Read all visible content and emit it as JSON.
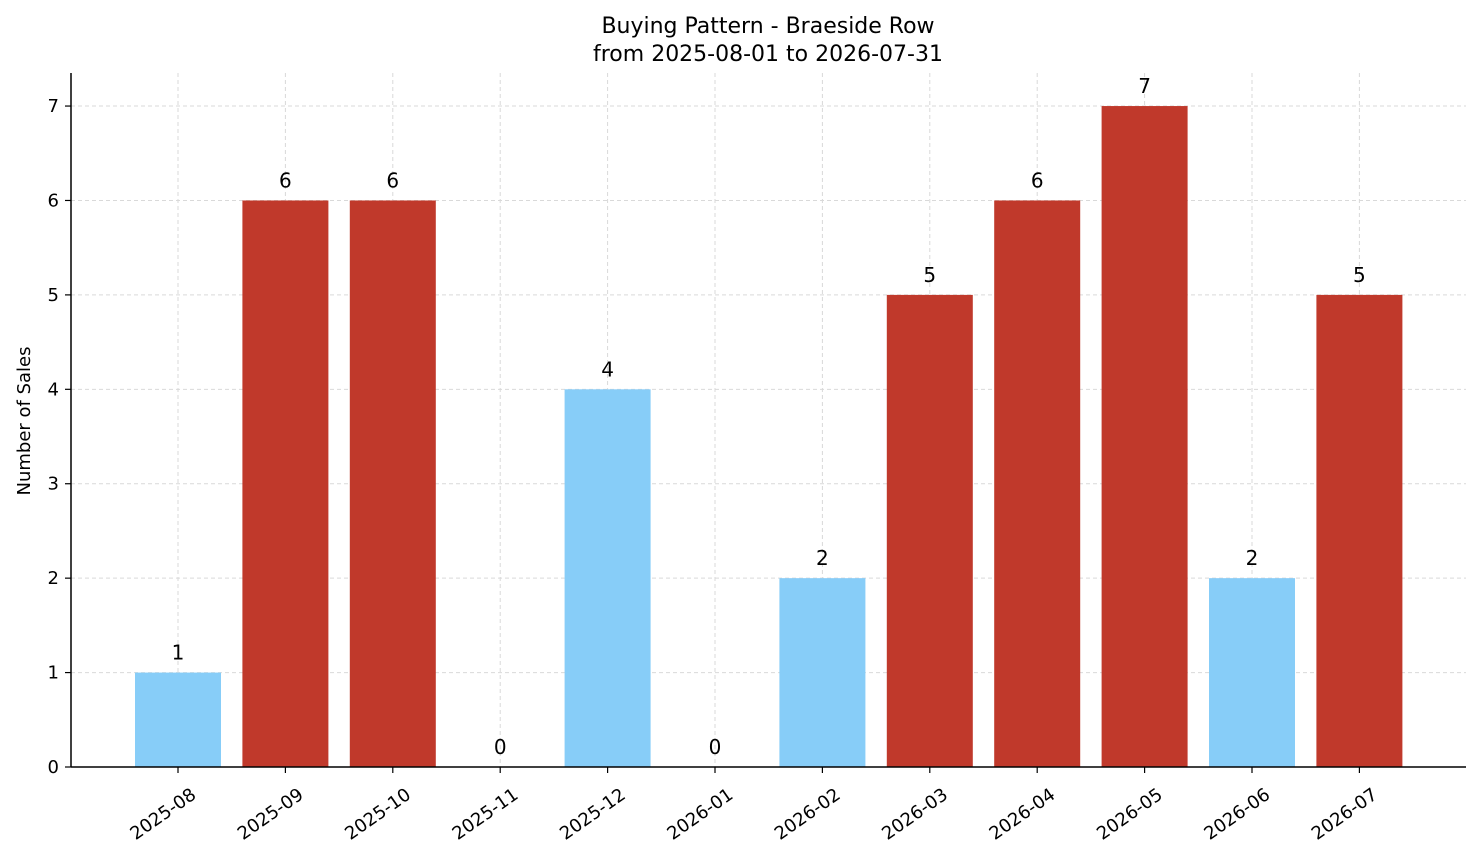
{
  "chart_data": {
    "type": "bar",
    "title": "Buying Pattern - Braeside Row",
    "subtitle": "from 2025-08-01 to 2026-07-31",
    "xlabel": "",
    "ylabel": "Number of Sales",
    "categories": [
      "2025-08",
      "2025-09",
      "2025-10",
      "2025-11",
      "2025-12",
      "2026-01",
      "2026-02",
      "2026-03",
      "2026-04",
      "2026-05",
      "2026-06",
      "2026-07"
    ],
    "values": [
      1,
      6,
      6,
      0,
      4,
      0,
      2,
      5,
      6,
      7,
      2,
      5
    ],
    "highlight": [
      false,
      true,
      true,
      false,
      false,
      false,
      false,
      true,
      true,
      true,
      false,
      true
    ],
    "ylim": [
      0,
      7.35
    ],
    "yticks": [
      0,
      1,
      2,
      3,
      4,
      5,
      6,
      7
    ],
    "grid": true,
    "legend": "none",
    "colors": {
      "low": "#87cdf8",
      "high": "#c0392b",
      "grid": "#d9d9d9",
      "axis": "#000000"
    }
  }
}
